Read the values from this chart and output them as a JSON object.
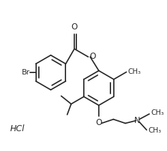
{
  "background_color": "#ffffff",
  "line_color": "#2a2a2a",
  "lw": 1.3,
  "figsize": [
    2.45,
    2.21
  ],
  "dpi": 100,
  "hcl": "HCl",
  "br": "Br",
  "o_label": "O",
  "n_label": "N",
  "ch3_label": "CH₃",
  "me_label": "CH₃"
}
